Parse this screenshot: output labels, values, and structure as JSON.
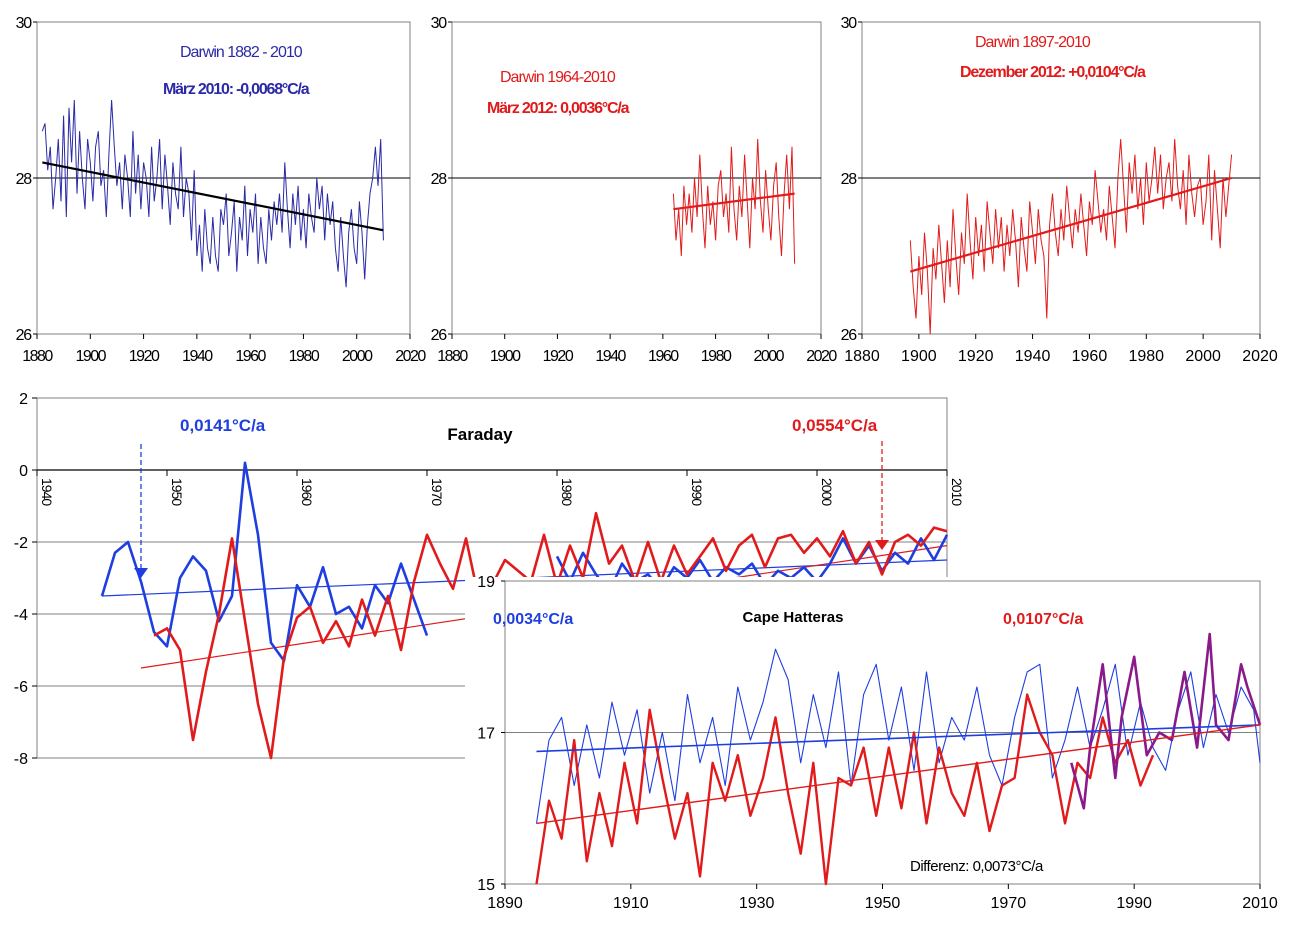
{
  "colors": {
    "blue": "#2a2aa8",
    "bright_blue": "#1f3ee0",
    "red": "#e11b1b",
    "purple": "#8a1a8a",
    "trend_black": "#000000"
  },
  "chart_data": [
    {
      "id": "darwin1",
      "type": "line",
      "title": "Darwin 1882 - 2010",
      "subtitle": "März 2010: -0,0068°C/a",
      "xlim": [
        1880,
        2020
      ],
      "ylim": [
        26,
        30
      ],
      "xticks": [
        "1880",
        "1900",
        "1920",
        "1940",
        "1960",
        "1980",
        "2000",
        "2020"
      ],
      "yticks": [
        "26",
        "28",
        "30"
      ],
      "series": [
        {
          "kind": "annual",
          "color": "#2a2aa8",
          "x_start": 1882,
          "values": [
            28.6,
            28.7,
            28.1,
            28.4,
            27.6,
            28.0,
            28.5,
            27.7,
            28.8,
            27.5,
            28.9,
            28.2,
            29.0,
            27.8,
            28.6,
            28.0,
            27.6,
            28.5,
            28.2,
            27.7,
            28.4,
            28.6,
            27.9,
            28.1,
            27.5,
            28.3,
            29.0,
            28.4,
            27.9,
            28.2,
            27.6,
            28.3,
            28.0,
            27.5,
            28.6,
            27.8,
            28.3,
            27.6,
            28.2,
            28.0,
            27.5,
            28.4,
            27.7,
            28.0,
            28.5,
            27.6,
            28.3,
            27.9,
            27.4,
            28.2,
            27.8,
            27.6,
            28.4,
            27.5,
            28.0,
            27.8,
            27.2,
            28.1,
            27.0,
            27.4,
            26.8,
            27.6,
            27.1,
            26.9,
            27.5,
            27.0,
            26.8,
            27.6,
            27.4,
            27.8,
            27.0,
            27.3,
            27.7,
            26.8,
            27.5,
            27.2,
            27.9,
            27.0,
            27.6,
            27.3,
            27.8,
            26.9,
            27.5,
            27.1,
            26.9,
            27.6,
            27.2,
            27.7,
            27.4,
            27.8,
            27.3,
            28.2,
            27.6,
            27.1,
            27.8,
            27.4,
            27.9,
            27.2,
            27.6,
            27.1,
            27.8,
            27.5,
            27.3,
            28.0,
            27.6,
            27.9,
            27.2,
            27.8,
            27.4,
            27.7,
            27.1,
            26.8,
            27.5,
            27.0,
            26.6,
            27.3,
            27.6,
            27.1,
            26.9,
            27.7,
            27.3,
            26.7,
            27.4,
            27.8,
            28.0,
            28.4,
            27.9,
            28.5,
            27.2
          ]
        },
        {
          "kind": "trend",
          "color": "#000000",
          "x": [
            1882,
            2010
          ],
          "y": [
            28.2,
            27.33
          ]
        }
      ]
    },
    {
      "id": "darwin2",
      "type": "line",
      "title": "Darwin 1964-2010",
      "subtitle": "März 2012: 0,0036°C/a",
      "xlim": [
        1880,
        2020
      ],
      "ylim": [
        26,
        30
      ],
      "xticks": [
        "1880",
        "1900",
        "1920",
        "1940",
        "1960",
        "1980",
        "2000",
        "2020"
      ],
      "yticks": [
        "26",
        "28",
        "30"
      ],
      "series": [
        {
          "kind": "annual",
          "color": "#e11b1b",
          "x_start": 1964,
          "values": [
            27.8,
            27.2,
            27.6,
            27.0,
            27.9,
            27.4,
            27.8,
            27.3,
            28.0,
            27.5,
            28.3,
            27.6,
            27.1,
            27.9,
            27.4,
            27.7,
            27.2,
            27.9,
            28.1,
            27.5,
            27.8,
            27.3,
            28.4,
            27.6,
            27.2,
            27.9,
            27.5,
            28.3,
            27.7,
            27.1,
            28.0,
            27.6,
            28.5,
            27.7,
            27.3,
            28.1,
            27.6,
            27.2,
            27.9,
            28.2,
            27.5,
            27.0,
            27.8,
            28.3,
            27.6,
            28.4,
            26.9
          ]
        },
        {
          "kind": "trend",
          "color": "#e11b1b",
          "x": [
            1964,
            2010
          ],
          "y": [
            27.6,
            27.8
          ]
        }
      ]
    },
    {
      "id": "darwin3",
      "type": "line",
      "title": "Darwin 1897-2010",
      "subtitle": "Dezember 2012: +0,0104°C/a",
      "xlim": [
        1880,
        2020
      ],
      "ylim": [
        26,
        30
      ],
      "xticks": [
        "1880",
        "1900",
        "1920",
        "1940",
        "1960",
        "1980",
        "2000",
        "2020"
      ],
      "yticks": [
        "26",
        "28",
        "30"
      ],
      "series": [
        {
          "kind": "annual",
          "color": "#e11b1b",
          "x_start": 1897,
          "values": [
            27.2,
            26.6,
            26.2,
            27.0,
            26.5,
            27.3,
            26.8,
            26.0,
            27.1,
            26.7,
            27.4,
            26.9,
            26.4,
            27.2,
            26.6,
            27.6,
            27.0,
            26.5,
            27.3,
            26.9,
            27.8,
            27.2,
            26.7,
            27.5,
            27.0,
            27.4,
            26.8,
            27.7,
            27.3,
            26.9,
            27.6,
            27.1,
            27.5,
            26.8,
            27.4,
            27.0,
            27.6,
            27.2,
            26.6,
            27.5,
            27.1,
            26.8,
            27.7,
            27.3,
            26.9,
            27.6,
            27.2,
            27.0,
            26.2,
            27.4,
            27.8,
            27.3,
            27.0,
            27.6,
            27.2,
            27.9,
            27.5,
            27.1,
            27.6,
            27.3,
            27.8,
            27.4,
            27.0,
            27.7,
            27.4,
            28.1,
            27.7,
            27.3,
            27.6,
            27.2,
            27.9,
            27.5,
            27.1,
            28.0,
            28.5,
            27.9,
            27.3,
            28.2,
            27.8,
            28.3,
            27.6,
            28.0,
            27.4,
            28.2,
            27.7,
            28.0,
            28.4,
            27.8,
            28.3,
            27.6,
            28.0,
            28.2,
            27.7,
            28.5,
            27.9,
            27.6,
            28.1,
            27.4,
            28.3,
            27.8,
            27.5,
            27.9,
            28.0,
            27.4,
            27.7,
            28.3,
            27.2,
            28.1,
            27.6,
            27.1,
            28.0,
            27.5,
            27.9,
            28.3
          ]
        },
        {
          "kind": "trend",
          "color": "#e11b1b",
          "x": [
            1897,
            2010
          ],
          "y": [
            26.8,
            28.0
          ]
        }
      ]
    },
    {
      "id": "faraday",
      "type": "line",
      "title": "Faraday",
      "xlim": [
        1940,
        2010
      ],
      "ylim": [
        -8,
        2
      ],
      "xticks": [
        "1940",
        "1950",
        "1960",
        "1970",
        "1980",
        "1990",
        "2000",
        "2010"
      ],
      "yticks": [
        "2",
        "0",
        "-2",
        "-4",
        "-6",
        "-8"
      ],
      "annotations": [
        {
          "text": "0,0141°C/a",
          "color": "#1f3ee0",
          "arrow_x": 1948
        },
        {
          "text": "0,0554°C/a",
          "color": "#e11b1b",
          "arrow_x": 2005
        }
      ],
      "series": [
        {
          "kind": "smoothed",
          "color": "#1f3ee0",
          "x": [
            1945,
            1946,
            1947,
            1948,
            1949,
            1950,
            1951,
            1952,
            1953,
            1954,
            1955,
            1956,
            1957,
            1958,
            1959,
            1960,
            1961,
            1962,
            1963,
            1964,
            1965,
            1966,
            1967,
            1968,
            1969,
            1970
          ],
          "y": [
            -3.5,
            -2.3,
            -2.0,
            -3.1,
            -4.5,
            -4.9,
            -3.0,
            -2.4,
            -2.8,
            -4.2,
            -3.5,
            0.2,
            -1.8,
            -4.8,
            -5.3,
            -3.2,
            -3.8,
            -2.7,
            -4.0,
            -3.8,
            -4.4,
            -3.2,
            -3.7,
            -2.6,
            -3.6,
            -4.6
          ]
        },
        {
          "kind": "smoothed",
          "color": "#1f3ee0",
          "x": [
            1980,
            1981,
            1982,
            1983,
            1984,
            1985,
            1986,
            1987,
            1988,
            1989,
            1990,
            1991,
            1992,
            1993,
            1994,
            1995,
            1996,
            1997,
            1998,
            1999,
            2000,
            2001,
            2002,
            2003,
            2004,
            2005,
            2006,
            2007,
            2008,
            2009,
            2010
          ],
          "y": [
            -2.4,
            -3.1,
            -2.3,
            -2.9,
            -3.4,
            -2.6,
            -3.1,
            -2.9,
            -3.3,
            -2.7,
            -3.0,
            -2.5,
            -3.1,
            -2.7,
            -2.9,
            -2.6,
            -3.2,
            -2.8,
            -3.0,
            -2.7,
            -3.1,
            -2.6,
            -1.9,
            -2.6,
            -2.1,
            -2.8,
            -2.3,
            -2.6,
            -1.9,
            -2.5,
            -1.8
          ]
        },
        {
          "kind": "smoothed",
          "color": "#e11b1b",
          "x": [
            1949,
            1950,
            1951,
            1952,
            1953,
            1954,
            1955,
            1956,
            1957,
            1958,
            1959,
            1960,
            1961,
            1962,
            1963,
            1964,
            1965,
            1966,
            1967,
            1968,
            1969,
            1970,
            1971,
            1972,
            1973,
            1974,
            1975,
            1976,
            1977,
            1978,
            1979,
            1980,
            1981,
            1982,
            1983,
            1984,
            1985,
            1986,
            1987,
            1988,
            1989,
            1990,
            1991,
            1992,
            1993,
            1994,
            1995,
            1996,
            1997,
            1998,
            1999,
            2000,
            2001,
            2002,
            2003,
            2004,
            2005,
            2006,
            2007,
            2008,
            2009,
            2010
          ],
          "y": [
            -4.6,
            -4.4,
            -5.0,
            -7.5,
            -5.6,
            -4.0,
            -1.9,
            -4.2,
            -6.5,
            -8.0,
            -5.2,
            -4.1,
            -3.8,
            -4.8,
            -4.2,
            -4.9,
            -3.6,
            -4.6,
            -3.5,
            -5.0,
            -3.1,
            -1.8,
            -2.6,
            -3.3,
            -1.9,
            -3.6,
            -3.2,
            -2.5,
            -2.8,
            -3.1,
            -1.8,
            -3.2,
            -2.1,
            -3.0,
            -1.2,
            -2.6,
            -2.1,
            -3.1,
            -2.0,
            -3.1,
            -2.1,
            -2.9,
            -2.4,
            -1.9,
            -2.8,
            -2.1,
            -1.8,
            -2.7,
            -1.9,
            -1.8,
            -2.3,
            -1.9,
            -2.4,
            -1.7,
            -2.6,
            -2.0,
            -2.9,
            -2.0,
            -1.8,
            -2.1,
            -1.6,
            -1.7
          ]
        },
        {
          "kind": "trend",
          "color": "#1f3ee0",
          "x": [
            1945,
            2010
          ],
          "y": [
            -3.5,
            -2.5
          ]
        },
        {
          "kind": "trend",
          "color": "#e11b1b",
          "x": [
            1948,
            2010
          ],
          "y": [
            -5.5,
            -2.1
          ]
        }
      ]
    },
    {
      "id": "cape",
      "type": "line",
      "title": "Cape Hatteras",
      "xlim": [
        1890,
        2010
      ],
      "ylim": [
        15,
        19
      ],
      "xticks": [
        "1890",
        "1910",
        "1930",
        "1950",
        "1970",
        "1990",
        "2010"
      ],
      "yticks": [
        "15",
        "17",
        "19"
      ],
      "annotations": [
        {
          "text": "0,0034°C/a",
          "color": "#1f3ee0"
        },
        {
          "text": "0,0107°C/a",
          "color": "#e11b1b"
        },
        {
          "text": "Differenz: 0,0073°C/a",
          "color": "#000000"
        }
      ],
      "series": [
        {
          "kind": "smoothed",
          "color": "#1f3ee0",
          "x": [
            1895,
            1897,
            1899,
            1901,
            1903,
            1905,
            1907,
            1909,
            1911,
            1913,
            1915,
            1917,
            1919,
            1921,
            1923,
            1925,
            1927,
            1929,
            1931,
            1933,
            1935,
            1937,
            1939,
            1941,
            1943,
            1945,
            1947,
            1949,
            1951,
            1953,
            1955,
            1957,
            1959,
            1961,
            1963,
            1965,
            1967,
            1969,
            1971,
            1973,
            1975,
            1977,
            1979,
            1981,
            1983,
            1985,
            1987,
            1989,
            1991,
            1993,
            1995,
            1997,
            1999,
            2001,
            2003,
            2005,
            2007,
            2009,
            2010
          ],
          "y": [
            15.8,
            16.9,
            17.2,
            16.3,
            17.1,
            16.4,
            17.4,
            16.7,
            17.3,
            16.2,
            17.0,
            16.1,
            17.5,
            16.6,
            17.2,
            16.3,
            17.6,
            16.9,
            17.4,
            18.1,
            17.7,
            16.6,
            17.5,
            16.8,
            17.8,
            16.3,
            17.5,
            17.9,
            16.9,
            17.6,
            16.5,
            17.8,
            16.6,
            17.2,
            16.9,
            17.6,
            16.7,
            16.3,
            17.2,
            17.8,
            17.9,
            16.4,
            16.9,
            17.6,
            16.8,
            17.3,
            17.9,
            16.7,
            17.4,
            16.8,
            16.5,
            17.3,
            17.8,
            16.8,
            17.5,
            17.0,
            17.6,
            17.3,
            16.6
          ]
        },
        {
          "kind": "smoothed",
          "color": "#e11b1b",
          "x": [
            1895,
            1897,
            1899,
            1901,
            1903,
            1905,
            1907,
            1909,
            1911,
            1913,
            1915,
            1917,
            1919,
            1921,
            1923,
            1925,
            1927,
            1929,
            1931,
            1933,
            1935,
            1937,
            1939,
            1941,
            1943,
            1945,
            1947,
            1949,
            1951,
            1953,
            1955,
            1957,
            1959,
            1961,
            1963,
            1965,
            1967,
            1969,
            1971,
            1973,
            1975,
            1977,
            1979,
            1981,
            1983,
            1985,
            1987,
            1989,
            1991,
            1993
          ],
          "y": [
            15.0,
            16.1,
            15.6,
            16.9,
            15.3,
            16.2,
            15.5,
            16.6,
            15.8,
            17.3,
            16.4,
            15.6,
            16.2,
            15.1,
            16.6,
            16.1,
            16.7,
            15.9,
            16.4,
            17.2,
            16.2,
            15.4,
            16.6,
            15.0,
            16.4,
            16.3,
            16.8,
            15.9,
            16.8,
            16.0,
            17.0,
            15.8,
            16.8,
            16.2,
            15.9,
            16.6,
            15.7,
            16.3,
            16.4,
            17.5,
            17.0,
            16.7,
            15.8,
            16.6,
            16.4,
            17.2,
            16.6,
            16.9,
            16.3,
            16.7
          ]
        },
        {
          "kind": "smoothed",
          "color": "#8a1a8a",
          "x": [
            1980,
            1982,
            1983,
            1985,
            1987,
            1988,
            1990,
            1992,
            1994,
            1996,
            1998,
            2000,
            2002,
            2003,
            2005,
            2007,
            2008,
            2010
          ],
          "y": [
            16.6,
            16.0,
            16.8,
            17.9,
            16.4,
            17.2,
            18.0,
            16.7,
            17.0,
            16.9,
            17.8,
            16.8,
            18.3,
            17.1,
            16.9,
            17.9,
            17.6,
            17.1
          ]
        },
        {
          "kind": "trend",
          "color": "#1f3ee0",
          "x": [
            1895,
            2010
          ],
          "y": [
            16.75,
            17.1
          ]
        },
        {
          "kind": "trend",
          "color": "#e11b1b",
          "x": [
            1895,
            2010
          ],
          "y": [
            15.8,
            17.1
          ]
        }
      ]
    }
  ]
}
